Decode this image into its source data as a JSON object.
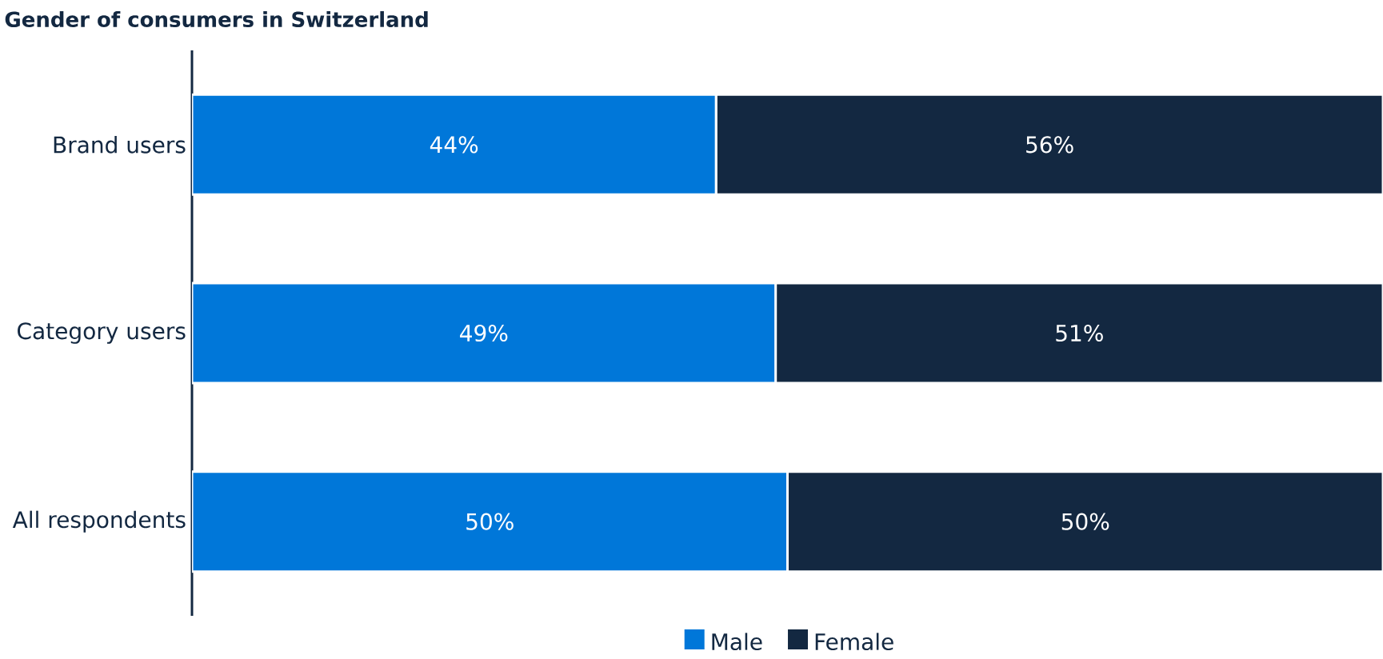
{
  "chart_data": {
    "type": "bar",
    "orientation": "horizontal",
    "stacked": true,
    "title": "Gender of consumers in Switzerland",
    "categories": [
      "Brand users",
      "Category users",
      "All respondents"
    ],
    "series": [
      {
        "name": "Male",
        "color": "#0077d9",
        "values": [
          44,
          49,
          50
        ],
        "value_labels": [
          "44%",
          "49%",
          "50%"
        ]
      },
      {
        "name": "Female",
        "color": "#132841",
        "values": [
          56,
          51,
          50
        ],
        "value_labels": [
          "56%",
          "51%",
          "50%"
        ]
      }
    ],
    "xlim": [
      0,
      100
    ],
    "tick_labels": "y",
    "legend": "bottom"
  }
}
